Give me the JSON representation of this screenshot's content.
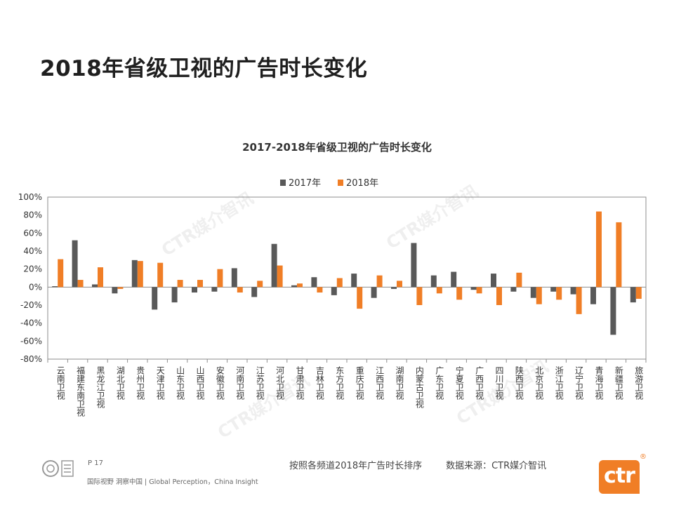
{
  "slide": {
    "title": "2018年省级卫视的广告时长变化",
    "page": "P 17",
    "slogan": "国际视野  洞察中国 | Global Perception，China Insight",
    "note": "按照各频道2018年广告时长排序",
    "source": "数据来源：CTR媒介智讯",
    "logo_text": "ctr",
    "registered_mark": "®",
    "watermark": "CTR媒介智讯"
  },
  "chart_data": {
    "type": "bar",
    "title": "2017-2018年省级卫视的广告时长变化",
    "legend_position": "top-center",
    "grid": false,
    "ylim": [
      -80,
      100
    ],
    "yticks": [
      "100%",
      "80%",
      "60%",
      "40%",
      "20%",
      "0%",
      "-20%",
      "-40%",
      "-60%",
      "-80%"
    ],
    "categories": [
      "云南卫视",
      "福建东南卫视",
      "黑龙江卫视",
      "湖北卫视",
      "贵州卫视",
      "天津卫视",
      "山东卫视",
      "山西卫视",
      "安徽卫视",
      "河南卫视",
      "江苏卫视",
      "河北卫视",
      "甘肃卫视",
      "吉林卫视",
      "东方卫视",
      "重庆卫视",
      "江西卫视",
      "湖南卫视",
      "内蒙古卫视",
      "广东卫视",
      "宁夏卫视",
      "广西卫视",
      "四川卫视",
      "陕西卫视",
      "北京卫视",
      "浙江卫视",
      "辽宁卫视",
      "青海卫视",
      "新疆卫视",
      "旅游卫视"
    ],
    "series": [
      {
        "name": "2017年",
        "color": "#595959",
        "values": [
          1,
          52,
          3,
          -7,
          30,
          -25,
          -17,
          -6,
          -5,
          21,
          -11,
          48,
          2,
          11,
          -9,
          15,
          -12,
          -2,
          49,
          13,
          17,
          -3,
          15,
          -5,
          -12,
          -5,
          -8,
          -19,
          -53,
          -17
        ]
      },
      {
        "name": "2018年",
        "color": "#f07e26",
        "values": [
          31,
          8,
          22,
          -2,
          29,
          27,
          8,
          8,
          20,
          -6,
          7,
          24,
          4,
          -6,
          10,
          -24,
          13,
          7,
          -20,
          -7,
          -14,
          -7,
          -20,
          16,
          -19,
          -14,
          -30,
          84,
          72,
          -13
        ]
      }
    ]
  }
}
